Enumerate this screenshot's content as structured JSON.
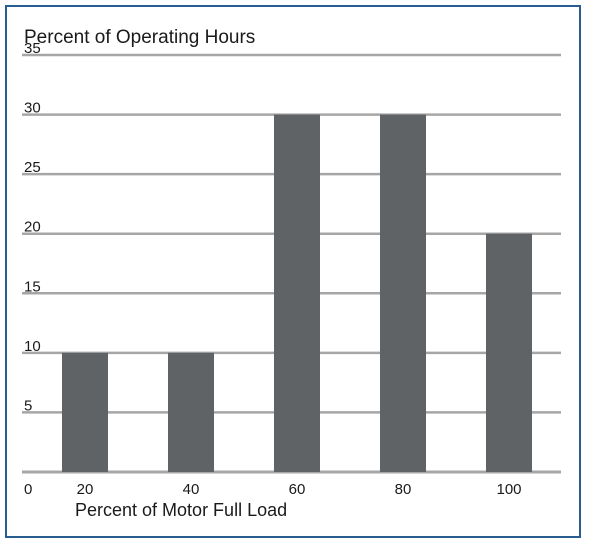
{
  "chart_data": {
    "type": "bar",
    "title": "Percent of Operating Hours",
    "xlabel": "Percent of Motor Full Load",
    "ylabel": "",
    "categories": [
      "20",
      "40",
      "60",
      "80",
      "100"
    ],
    "values": [
      10,
      10,
      30,
      30,
      20
    ],
    "ylim": [
      0,
      35
    ],
    "yticks": [
      "0",
      "5",
      "10",
      "15",
      "20",
      "25",
      "30",
      "35"
    ],
    "grid": true,
    "legend": "none"
  },
  "colors": {
    "bar": "#5f6366",
    "grid": "#a6a6a6",
    "border": "#2a5d8f"
  }
}
